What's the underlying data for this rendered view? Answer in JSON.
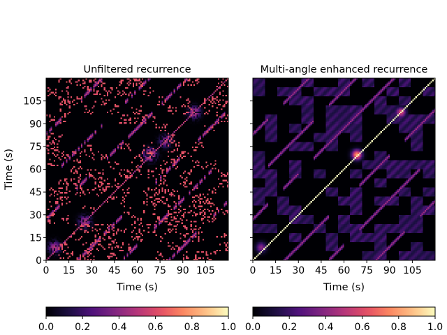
{
  "chart_data": [
    {
      "type": "heatmap",
      "title": "Unfiltered recurrence",
      "xlabel": "Time (s)",
      "ylabel": "Time (s)",
      "xlim": [
        0,
        120
      ],
      "ylim": [
        0,
        120
      ],
      "xticks": [
        0,
        15,
        30,
        45,
        60,
        75,
        90,
        105
      ],
      "yticks": [
        0,
        15,
        30,
        45,
        60,
        75,
        90,
        105
      ],
      "colormap": "magma",
      "colorbar": {
        "orientation": "horizontal",
        "range": [
          0,
          1
        ],
        "ticks": [
          "0.0",
          "0.2",
          "0.4",
          "0.6",
          "0.8",
          "1.0"
        ]
      },
      "features": {
        "main_diagonal": 0.7,
        "offset_diagonals": [
          -83,
          -52,
          -27,
          21,
          50,
          81
        ],
        "hotspots": [
          [
            68,
            69,
            0.75
          ],
          [
            78,
            78,
            0.45
          ],
          [
            97,
            97,
            0.55
          ],
          [
            25,
            25,
            0.5
          ],
          [
            5,
            8,
            0.5
          ]
        ]
      }
    },
    {
      "type": "heatmap",
      "title": "Multi-angle enhanced recurrence",
      "xlabel": "Time (s)",
      "ylabel": "",
      "xlim": [
        0,
        120
      ],
      "ylim": [
        0,
        120
      ],
      "xticks": [
        0,
        15,
        30,
        45,
        60,
        75,
        90,
        105
      ],
      "yticks": [
        0,
        15,
        30,
        45,
        60,
        75,
        90,
        105
      ],
      "colormap": "magma",
      "colorbar": {
        "orientation": "horizontal",
        "range": [
          0,
          1
        ],
        "ticks": [
          "0.0",
          "0.2",
          "0.4",
          "0.6",
          "0.8",
          "1.0"
        ]
      },
      "features": {
        "main_diagonal": 1.0,
        "offset_diagonals": [
          -83,
          -52,
          -27,
          21,
          50,
          81
        ],
        "hotspots": [
          [
            68,
            69,
            0.8
          ],
          [
            97,
            97,
            0.6
          ],
          [
            5,
            8,
            0.4
          ]
        ]
      }
    }
  ]
}
